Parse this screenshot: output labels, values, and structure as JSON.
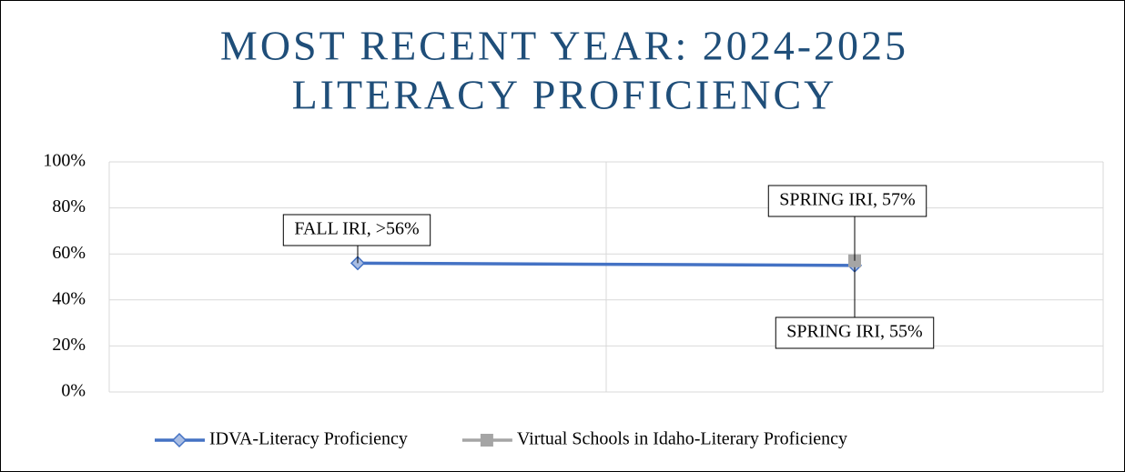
{
  "chart_data": {
    "type": "line",
    "title_lines": [
      "MOST RECENT YEAR: 2024-2025",
      "LITERACY PROFICIENCY"
    ],
    "series": [
      {
        "name": "IDVA-Literacy Proficiency",
        "color": "#4472c4",
        "marker": "diamond",
        "values": [
          56,
          55
        ],
        "value_labels": [
          "FALL IRI, >56%",
          "SPRING IRI, 55%"
        ]
      },
      {
        "name": "Virtual Schools in Idaho-Literary Proficiency",
        "color": "#a5a5a5",
        "marker": "square",
        "values": [
          null,
          57
        ],
        "value_labels": [
          null,
          "SPRING IRI, 57%"
        ]
      }
    ],
    "ylim": [
      0,
      100
    ],
    "yticks": [
      {
        "value": 0,
        "label": "0%"
      },
      {
        "value": 20,
        "label": "20%"
      },
      {
        "value": 40,
        "label": "40%"
      },
      {
        "value": 60,
        "label": "60%"
      },
      {
        "value": 80,
        "label": "80%"
      },
      {
        "value": 100,
        "label": "100%"
      }
    ],
    "grid": true,
    "legend": "bottom"
  }
}
